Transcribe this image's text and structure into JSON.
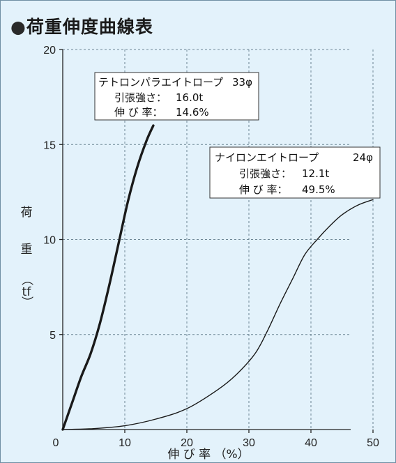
{
  "title": "荷重伸度曲線表",
  "bullet": "●",
  "colors": {
    "background": "#e3f2fb",
    "grid": "#6e8796",
    "line": "#1a1a1a",
    "box": "#ffffff"
  },
  "chart_data": {
    "type": "line",
    "title": "荷重伸度曲線表",
    "xlabel": "伸 び 率 （%）",
    "ylabel": [
      "荷",
      "重",
      "（",
      "tf",
      "）"
    ],
    "xlim": [
      0,
      55
    ],
    "ylim": [
      0,
      20
    ],
    "xticks": [
      0,
      10,
      20,
      30,
      40,
      50
    ],
    "yticks": [
      5,
      10,
      15,
      20
    ],
    "origin_label": "0",
    "grid": true,
    "series": [
      {
        "name": "テトロンパラエイトロープ",
        "size": "33φ",
        "strength_label": "引張強さ：",
        "strength": "16.0t",
        "elongation_label": "伸 び 率：",
        "elongation": "14.6%",
        "stroke_width": 3.4,
        "x": [
          0,
          1.5,
          3,
          4.5,
          6,
          7.5,
          9,
          10.5,
          12,
          13.5,
          14.6
        ],
        "y": [
          0,
          1.4,
          2.8,
          4.0,
          5.6,
          7.6,
          9.8,
          12.0,
          13.8,
          15.2,
          16.0
        ]
      },
      {
        "name": "ナイロンエイトロープ",
        "size": "24φ",
        "strength_label": "引張強さ：",
        "strength": "12.1t",
        "elongation_label": "伸 び 率：",
        "elongation": "49.5%",
        "stroke_width": 1.4,
        "x": [
          0,
          5,
          10,
          15,
          20,
          25,
          28,
          31,
          33,
          35,
          37,
          39,
          41,
          43,
          45,
          47.5,
          50
        ],
        "y": [
          0,
          0.05,
          0.2,
          0.55,
          1.1,
          2.1,
          2.9,
          4.0,
          5.2,
          6.6,
          7.9,
          9.2,
          10.0,
          10.7,
          11.3,
          11.8,
          12.1
        ]
      }
    ]
  }
}
